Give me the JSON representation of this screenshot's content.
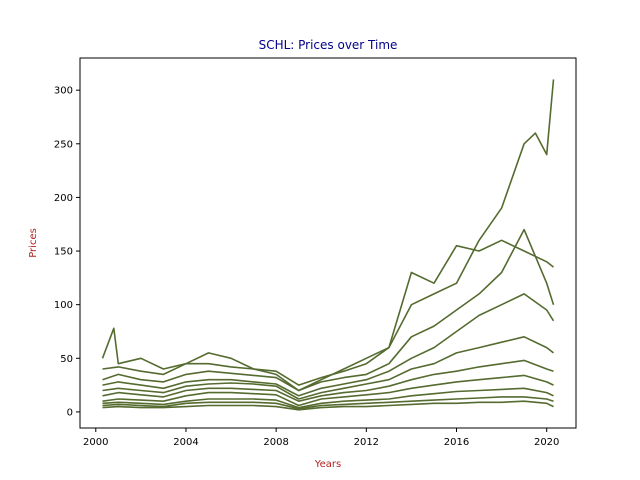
{
  "chart_data": {
    "type": "line",
    "title": "SCHL: Prices over Time",
    "xlabel": "Years",
    "ylabel": "Prices",
    "xlim": [
      1999.3,
      2021.3
    ],
    "ylim": [
      -15,
      330
    ],
    "x_ticks": [
      2000,
      2004,
      2008,
      2012,
      2016,
      2020
    ],
    "x_tick_labels": [
      "2000",
      "2004",
      "2008",
      "2012",
      "2016",
      "2020"
    ],
    "y_ticks": [
      0,
      50,
      100,
      150,
      200,
      250,
      300
    ],
    "y_tick_labels": [
      "0",
      "50",
      "100",
      "150",
      "200",
      "250",
      "300"
    ],
    "grid": false,
    "legend": "none",
    "colors": {
      "line": "#556b2f",
      "title": "#00008b",
      "axis_label": "#b22222",
      "axes": "#000000"
    },
    "series": [
      {
        "x": [
          2000.3,
          2000.8,
          2001,
          2002,
          2003,
          2004,
          2005,
          2006,
          2007,
          2008,
          2009,
          2010,
          2011,
          2012,
          2013,
          2014,
          2015,
          2016,
          2017,
          2018,
          2019,
          2019.5,
          2020,
          2020.3
        ],
        "values": [
          50,
          78,
          45,
          50,
          40,
          45,
          55,
          50,
          40,
          35,
          20,
          30,
          40,
          50,
          60,
          100,
          110,
          120,
          160,
          190,
          250,
          260,
          240,
          310
        ]
      },
      {
        "x": [
          2000.3,
          2001,
          2002,
          2003,
          2004,
          2005,
          2006,
          2007,
          2008,
          2009,
          2010,
          2011,
          2012,
          2013,
          2014,
          2015,
          2016,
          2017,
          2018,
          2019,
          2020,
          2020.3
        ],
        "values": [
          40,
          42,
          38,
          35,
          45,
          45,
          42,
          40,
          38,
          25,
          32,
          38,
          45,
          60,
          130,
          120,
          155,
          150,
          160,
          150,
          140,
          135
        ]
      },
      {
        "x": [
          2000.3,
          2001,
          2002,
          2003,
          2004,
          2005,
          2006,
          2007,
          2008,
          2009,
          2010,
          2011,
          2012,
          2013,
          2014,
          2015,
          2016,
          2017,
          2018,
          2019,
          2020,
          2020.3
        ],
        "values": [
          30,
          35,
          30,
          28,
          35,
          38,
          36,
          34,
          32,
          20,
          28,
          32,
          35,
          45,
          70,
          80,
          95,
          110,
          130,
          170,
          120,
          100
        ]
      },
      {
        "x": [
          2000.3,
          2001,
          2002,
          2003,
          2004,
          2005,
          2006,
          2007,
          2008,
          2009,
          2010,
          2011,
          2012,
          2013,
          2014,
          2015,
          2016,
          2017,
          2018,
          2019,
          2020,
          2020.3
        ],
        "values": [
          25,
          28,
          25,
          22,
          28,
          30,
          30,
          28,
          26,
          15,
          22,
          26,
          30,
          38,
          50,
          60,
          75,
          90,
          100,
          110,
          95,
          85
        ]
      },
      {
        "x": [
          2000.3,
          2001,
          2002,
          2003,
          2004,
          2005,
          2006,
          2007,
          2008,
          2009,
          2010,
          2011,
          2012,
          2013,
          2014,
          2015,
          2016,
          2017,
          2018,
          2019,
          2020,
          2020.3
        ],
        "values": [
          20,
          22,
          20,
          18,
          24,
          26,
          27,
          26,
          24,
          12,
          18,
          22,
          26,
          30,
          40,
          45,
          55,
          60,
          65,
          70,
          60,
          55
        ]
      },
      {
        "x": [
          2000.3,
          2001,
          2002,
          2003,
          2004,
          2005,
          2006,
          2007,
          2008,
          2009,
          2010,
          2011,
          2012,
          2013,
          2014,
          2015,
          2016,
          2017,
          2018,
          2019,
          2020,
          2020.3
        ],
        "values": [
          15,
          18,
          16,
          14,
          20,
          22,
          22,
          21,
          20,
          10,
          15,
          18,
          20,
          24,
          30,
          35,
          38,
          42,
          45,
          48,
          40,
          38
        ]
      },
      {
        "x": [
          2000.3,
          2001,
          2002,
          2003,
          2004,
          2005,
          2006,
          2007,
          2008,
          2009,
          2010,
          2011,
          2012,
          2013,
          2014,
          2015,
          2016,
          2017,
          2018,
          2019,
          2020,
          2020.3
        ],
        "values": [
          10,
          12,
          11,
          10,
          15,
          18,
          18,
          17,
          16,
          6,
          12,
          14,
          16,
          18,
          22,
          25,
          28,
          30,
          32,
          34,
          28,
          25
        ]
      },
      {
        "x": [
          2000.3,
          2001,
          2002,
          2003,
          2004,
          2005,
          2006,
          2007,
          2008,
          2009,
          2010,
          2011,
          2012,
          2013,
          2014,
          2015,
          2016,
          2017,
          2018,
          2019,
          2020,
          2020.3
        ],
        "values": [
          8,
          9,
          8,
          7,
          10,
          12,
          12,
          12,
          11,
          4,
          8,
          10,
          11,
          12,
          15,
          17,
          19,
          20,
          21,
          22,
          18,
          15
        ]
      },
      {
        "x": [
          2000.3,
          2001,
          2002,
          2003,
          2004,
          2005,
          2006,
          2007,
          2008,
          2009,
          2010,
          2011,
          2012,
          2013,
          2014,
          2015,
          2016,
          2017,
          2018,
          2019,
          2020,
          2020.3
        ],
        "values": [
          6,
          7,
          6,
          5,
          8,
          9,
          9,
          9,
          8,
          3,
          6,
          7,
          8,
          9,
          10,
          11,
          12,
          13,
          14,
          14,
          12,
          10
        ]
      },
      {
        "x": [
          2000.3,
          2001,
          2002,
          2003,
          2004,
          2005,
          2006,
          2007,
          2008,
          2009,
          2010,
          2011,
          2012,
          2013,
          2014,
          2015,
          2016,
          2017,
          2018,
          2019,
          2020,
          2020.3
        ],
        "values": [
          4,
          5,
          4,
          4,
          5,
          6,
          6,
          6,
          5,
          2,
          4,
          5,
          5,
          6,
          7,
          8,
          8,
          9,
          9,
          10,
          8,
          5
        ]
      }
    ]
  }
}
